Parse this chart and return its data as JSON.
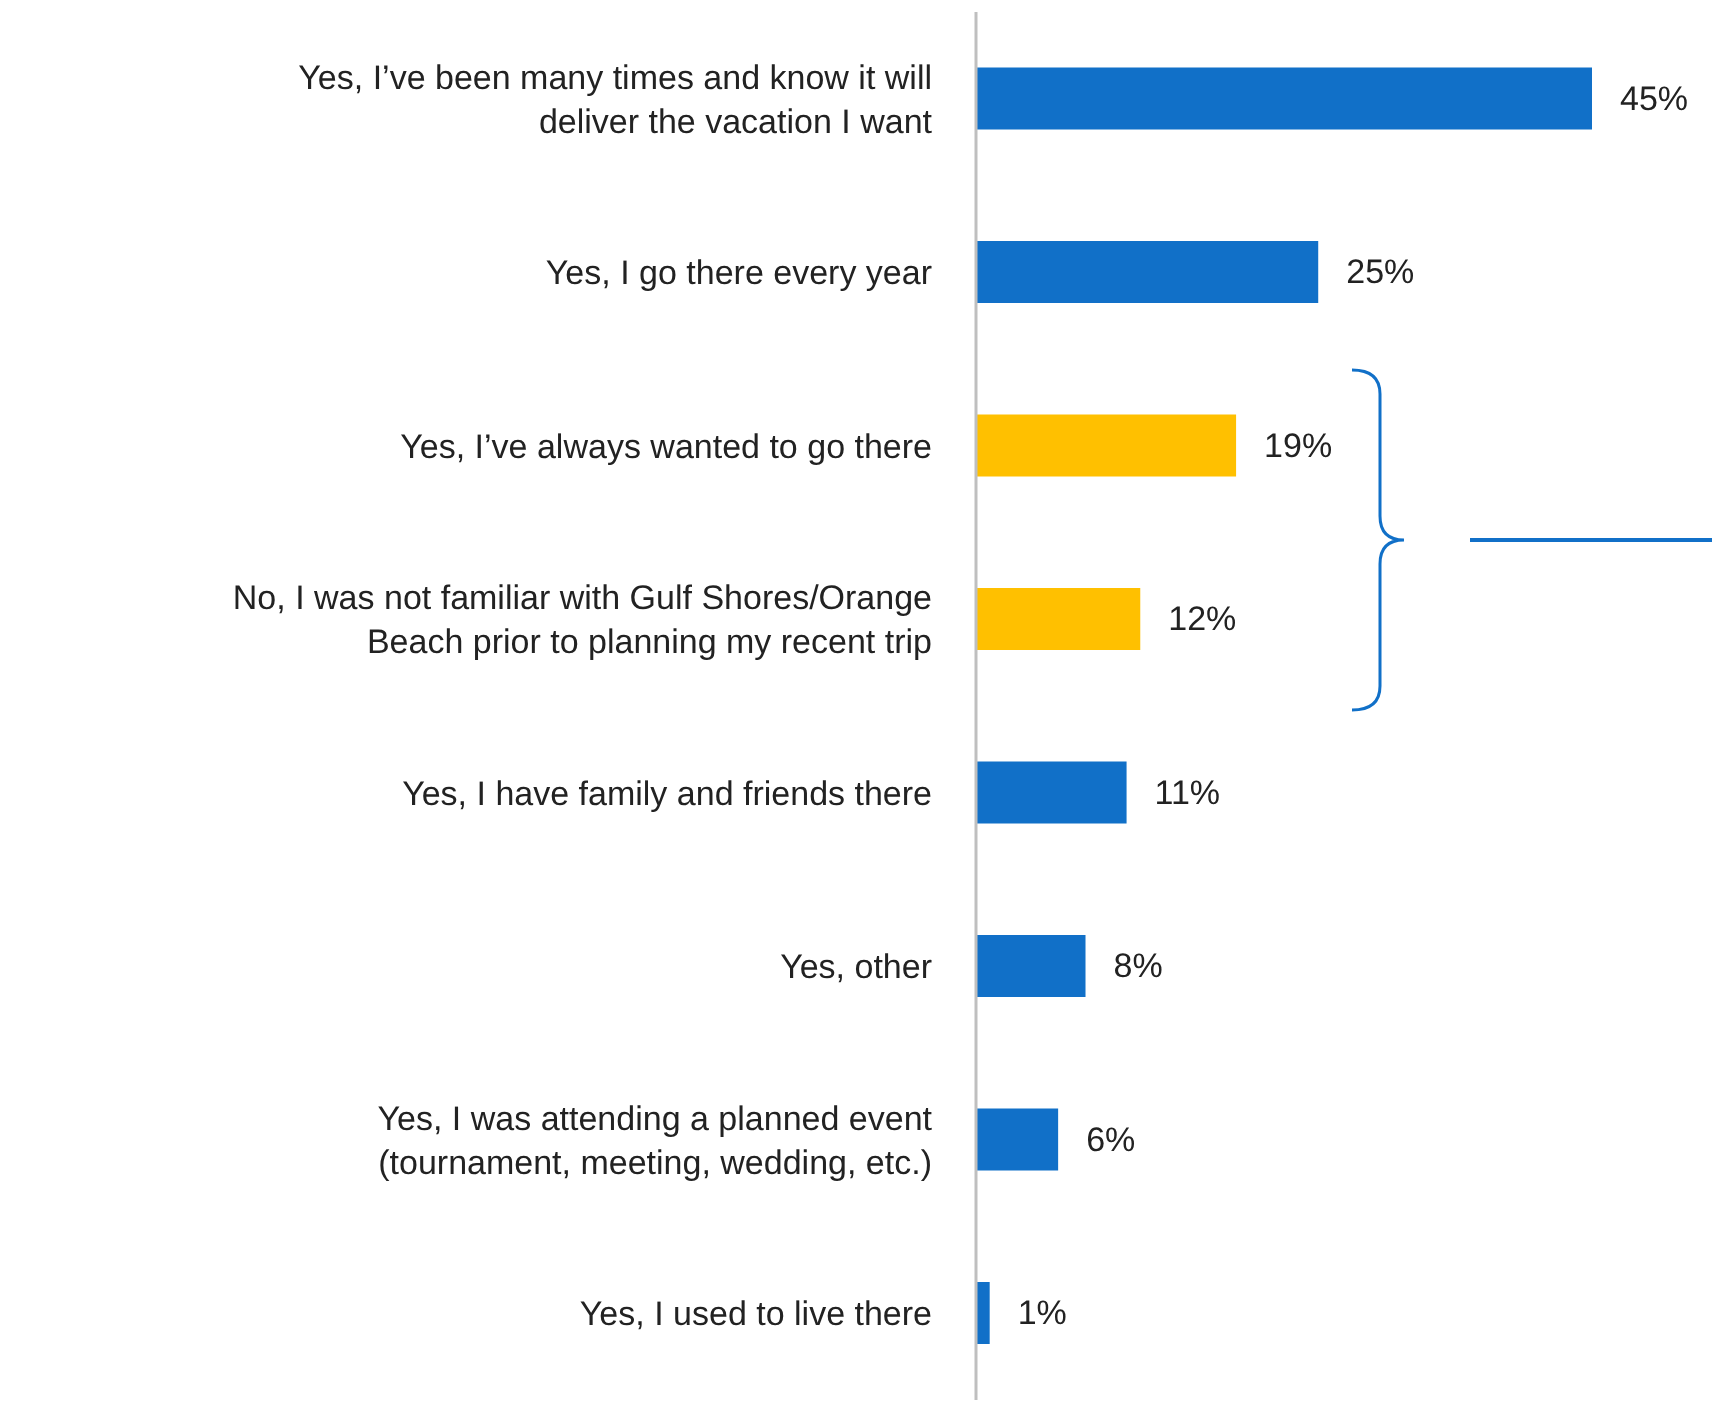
{
  "chart_data": {
    "type": "bar",
    "orientation": "horizontal",
    "categories": [
      "Yes, I’ve been many times and know it will deliver the vacation I want",
      "Yes, I go there every year",
      "Yes, I’ve always wanted to go there",
      "No, I was not familiar with Gulf Shores/Orange Beach prior to planning my recent trip",
      "Yes, I have family and friends there",
      "Yes, other",
      "Yes, I was attending a planned event (tournament, meeting, wedding, etc.)",
      "Yes, I used to live there"
    ],
    "values": [
      45,
      25,
      19,
      12,
      11,
      8,
      6,
      1
    ],
    "colors": [
      "#1170c8",
      "#1170c8",
      "#ffc000",
      "#ffc000",
      "#1170c8",
      "#1170c8",
      "#1170c8",
      "#1170c8"
    ],
    "value_labels": [
      "45%",
      "25%",
      "19%",
      "12%",
      "11%",
      "8%",
      "6%",
      "1%"
    ],
    "grid": false,
    "legend": false
  }
}
